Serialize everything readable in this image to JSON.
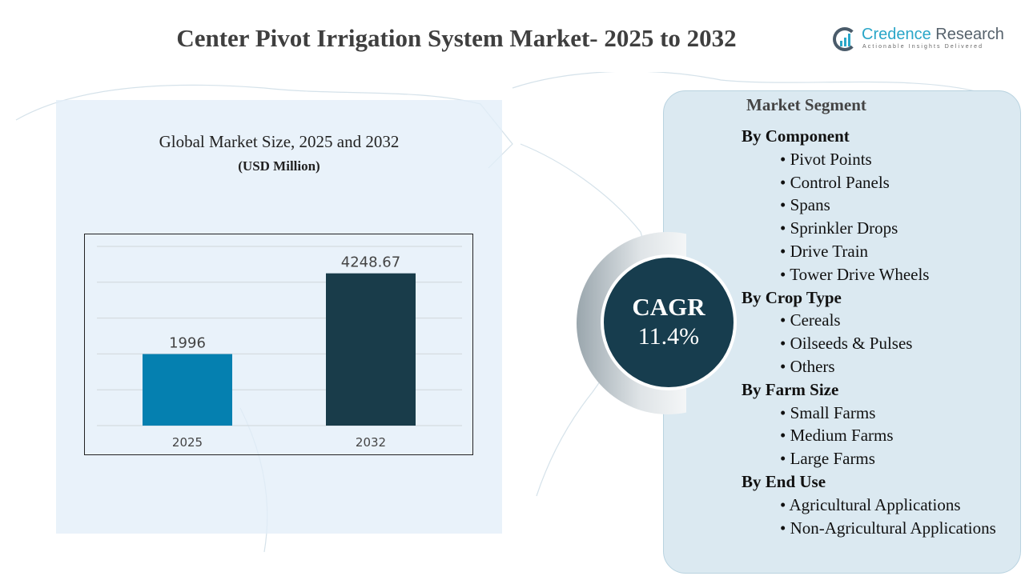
{
  "title": "Center Pivot Irrigation System Market- 2025 to 2032",
  "logo": {
    "name_part1": "Credence",
    "name_part2": "Research",
    "tagline": "Actionable Insights Delivered"
  },
  "chart_data": {
    "type": "bar",
    "title": "Global Market Size, 2025 and 2032",
    "subtitle": "(USD Million)",
    "categories": [
      "2025",
      "2032"
    ],
    "values": [
      1996,
      4248.67
    ],
    "value_labels": [
      "1996",
      "4248.67"
    ],
    "colors": [
      "#0580b0",
      "#193c4a"
    ],
    "ylim": [
      0,
      5000
    ],
    "grid": true,
    "y_tick_labels_shown": false
  },
  "cagr": {
    "label": "CAGR",
    "value": "11.4%"
  },
  "segments": {
    "title": "Market Segment",
    "groups": [
      {
        "heading": "By Component",
        "items": [
          "Pivot Points",
          "Control Panels",
          "Spans",
          "Sprinkler Drops",
          "Drive Train",
          "Tower Drive Wheels"
        ]
      },
      {
        "heading": "By Crop Type",
        "items": [
          "Cereals",
          "Oilseeds & Pulses",
          "Others"
        ]
      },
      {
        "heading": "By Farm Size",
        "items": [
          "Small Farms",
          "Medium Farms",
          "Large Farms"
        ]
      },
      {
        "heading": "By End Use",
        "items": [
          "Agricultural Applications",
          "Non-Agricultural Applications"
        ]
      }
    ]
  }
}
